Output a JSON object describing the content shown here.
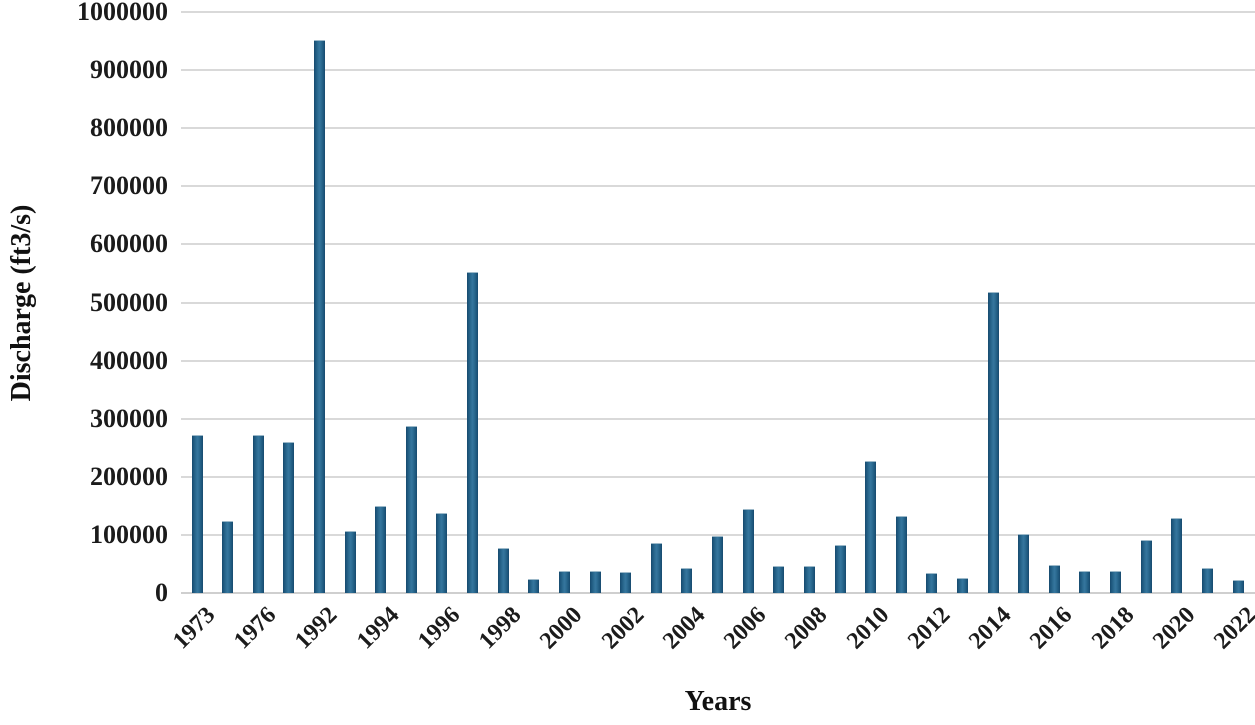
{
  "chart_data": {
    "type": "bar",
    "xlabel": "Years",
    "ylabel": "Discharge (ft3/s)",
    "ylim": [
      0,
      1000000
    ],
    "ytick_step": 100000,
    "y_ticks": [
      "1000000",
      "900000",
      "800000",
      "700000",
      "600000",
      "500000",
      "400000",
      "300000",
      "200000",
      "100000",
      "0"
    ],
    "grid": "horizontal-only",
    "legend": "none",
    "bar_color": "#2c6c92",
    "bar_edge_color": "#174a6d",
    "gridline_color": "#d9d9d9",
    "x_tick_labels": [
      "1973",
      "1976",
      "1992",
      "1994",
      "1996",
      "1998",
      "2000",
      "2002",
      "2004",
      "2006",
      "2008",
      "2010",
      "2012",
      "2014",
      "2016",
      "2018",
      "2020",
      "2022"
    ],
    "bars": [
      {
        "label": "1973",
        "value": 270000
      },
      {
        "label": "",
        "value": 122000
      },
      {
        "label": "1976",
        "value": 270000
      },
      {
        "label": "",
        "value": 258000
      },
      {
        "label": "1992",
        "value": 950000
      },
      {
        "label": "",
        "value": 105000
      },
      {
        "label": "1994",
        "value": 148000
      },
      {
        "label": "",
        "value": 285000
      },
      {
        "label": "1996",
        "value": 136000
      },
      {
        "label": "",
        "value": 550000
      },
      {
        "label": "1998",
        "value": 75000
      },
      {
        "label": "",
        "value": 22000
      },
      {
        "label": "2000",
        "value": 37000
      },
      {
        "label": "",
        "value": 37000
      },
      {
        "label": "2002",
        "value": 34000
      },
      {
        "label": "",
        "value": 84000
      },
      {
        "label": "2004",
        "value": 41000
      },
      {
        "label": "",
        "value": 96000
      },
      {
        "label": "2006",
        "value": 143000
      },
      {
        "label": "",
        "value": 44000
      },
      {
        "label": "2008",
        "value": 44000
      },
      {
        "label": "",
        "value": 81000
      },
      {
        "label": "2010",
        "value": 225000
      },
      {
        "label": "",
        "value": 130000
      },
      {
        "label": "2012",
        "value": 33000
      },
      {
        "label": "",
        "value": 24000
      },
      {
        "label": "2014",
        "value": 516000
      },
      {
        "label": "",
        "value": 100000
      },
      {
        "label": "2016",
        "value": 47000
      },
      {
        "label": "",
        "value": 37000
      },
      {
        "label": "2018",
        "value": 37000
      },
      {
        "label": "",
        "value": 89000
      },
      {
        "label": "2020",
        "value": 128000
      },
      {
        "label": "",
        "value": 41000
      },
      {
        "label": "2022",
        "value": 21000
      }
    ]
  }
}
